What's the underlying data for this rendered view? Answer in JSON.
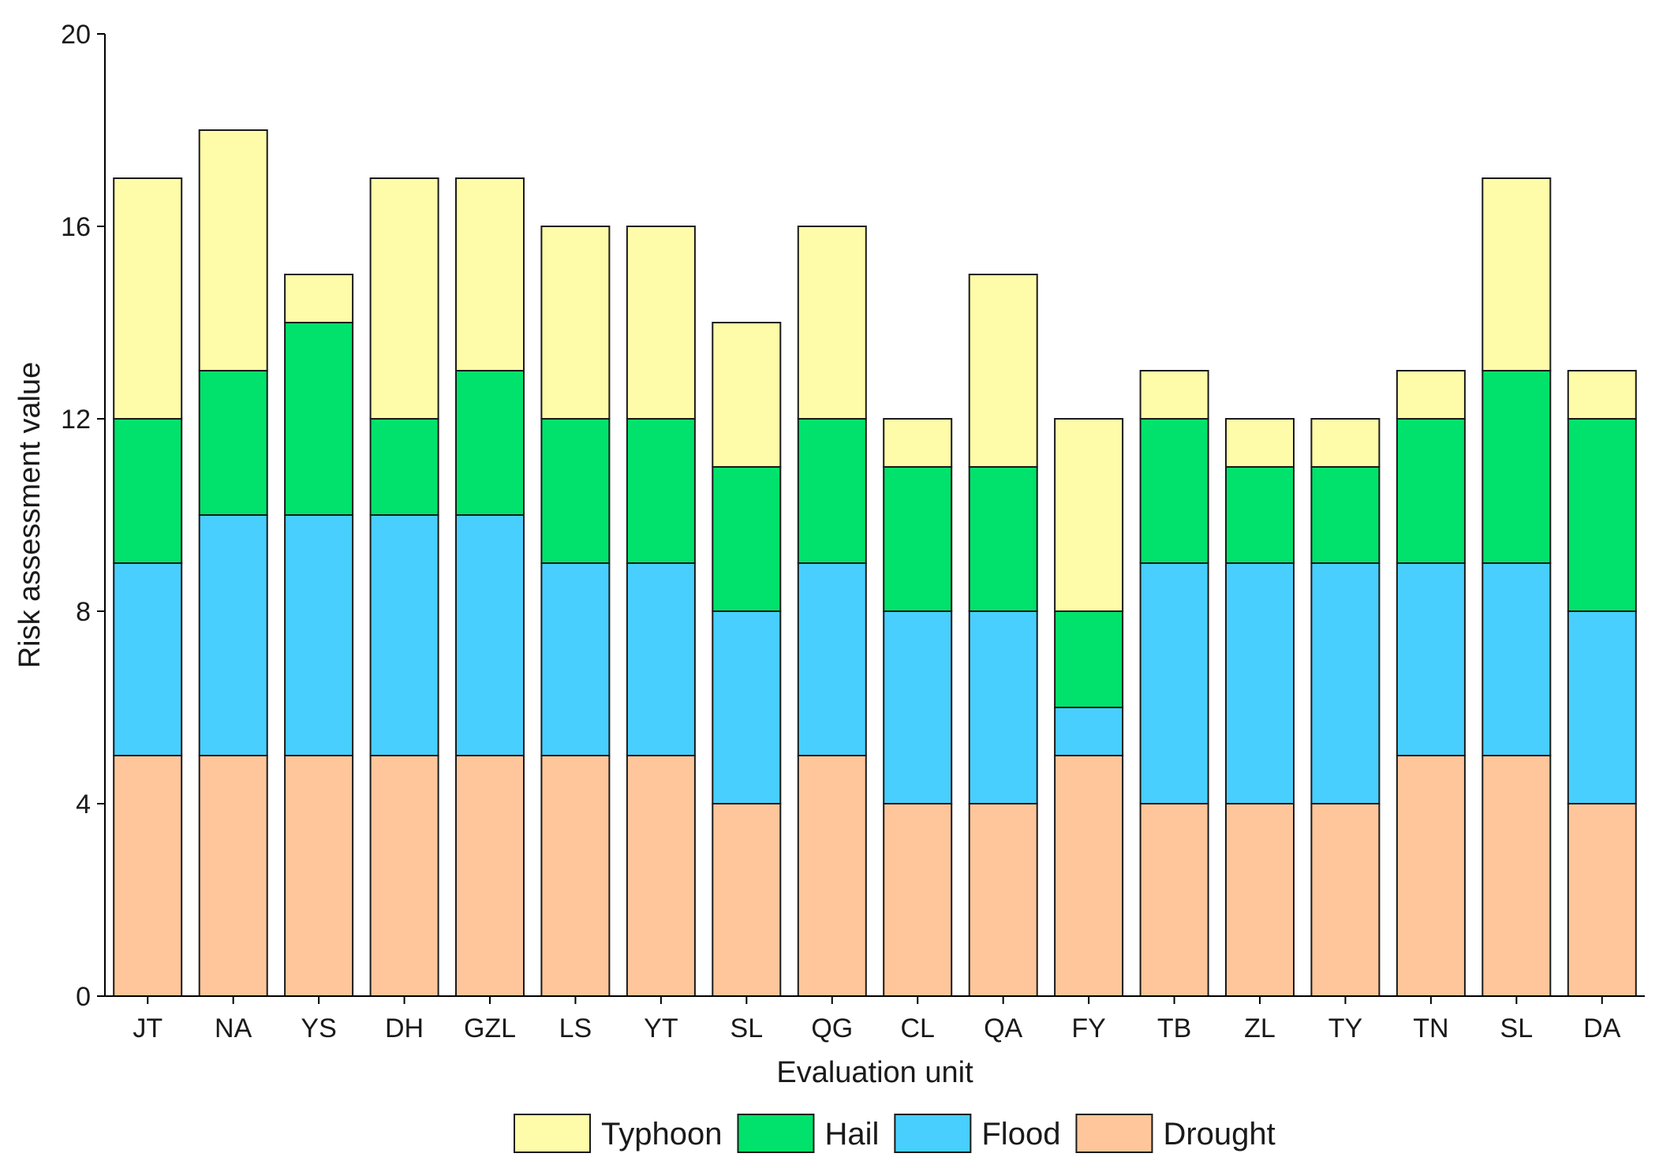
{
  "chart_data": {
    "type": "bar",
    "stacked": true,
    "title": "",
    "xlabel": "Evaluation unit",
    "ylabel": "Risk assessment value",
    "ylim": [
      0,
      20
    ],
    "yticks": [
      0,
      4,
      8,
      12,
      16,
      20
    ],
    "ytick_labels": [
      "0",
      "4",
      "8",
      "12",
      "16",
      "20"
    ],
    "grid": false,
    "legend_position": "bottom",
    "categories": [
      "JT",
      "NA",
      "YS",
      "DH",
      "GZL",
      "LS",
      "YT",
      "SL",
      "QG",
      "CL",
      "QA",
      "FY",
      "TB",
      "ZL",
      "TY",
      "TN",
      "SL",
      "DA"
    ],
    "series": [
      {
        "name": "Drought",
        "color": "#FEC69A",
        "values": [
          5,
          5,
          5,
          5,
          5,
          5,
          5,
          4,
          5,
          4,
          4,
          5,
          4,
          4,
          4,
          5,
          5,
          4
        ]
      },
      {
        "name": "Flood",
        "color": "#48CFFD",
        "values": [
          4,
          5,
          5,
          5,
          5,
          4,
          4,
          4,
          4,
          4,
          4,
          1,
          5,
          5,
          5,
          4,
          4,
          4
        ]
      },
      {
        "name": "Hail",
        "color": "#00E26B",
        "values": [
          3,
          3,
          4,
          2,
          3,
          3,
          3,
          3,
          3,
          3,
          3,
          2,
          3,
          2,
          2,
          3,
          4,
          4
        ]
      },
      {
        "name": "Typhoon",
        "color": "#FEFCA8",
        "values": [
          5,
          5,
          1,
          5,
          4,
          4,
          4,
          3,
          4,
          1,
          4,
          4,
          1,
          1,
          1,
          1,
          4,
          1
        ]
      }
    ],
    "legend_order": [
      "Typhoon",
      "Hail",
      "Flood",
      "Drought"
    ]
  }
}
